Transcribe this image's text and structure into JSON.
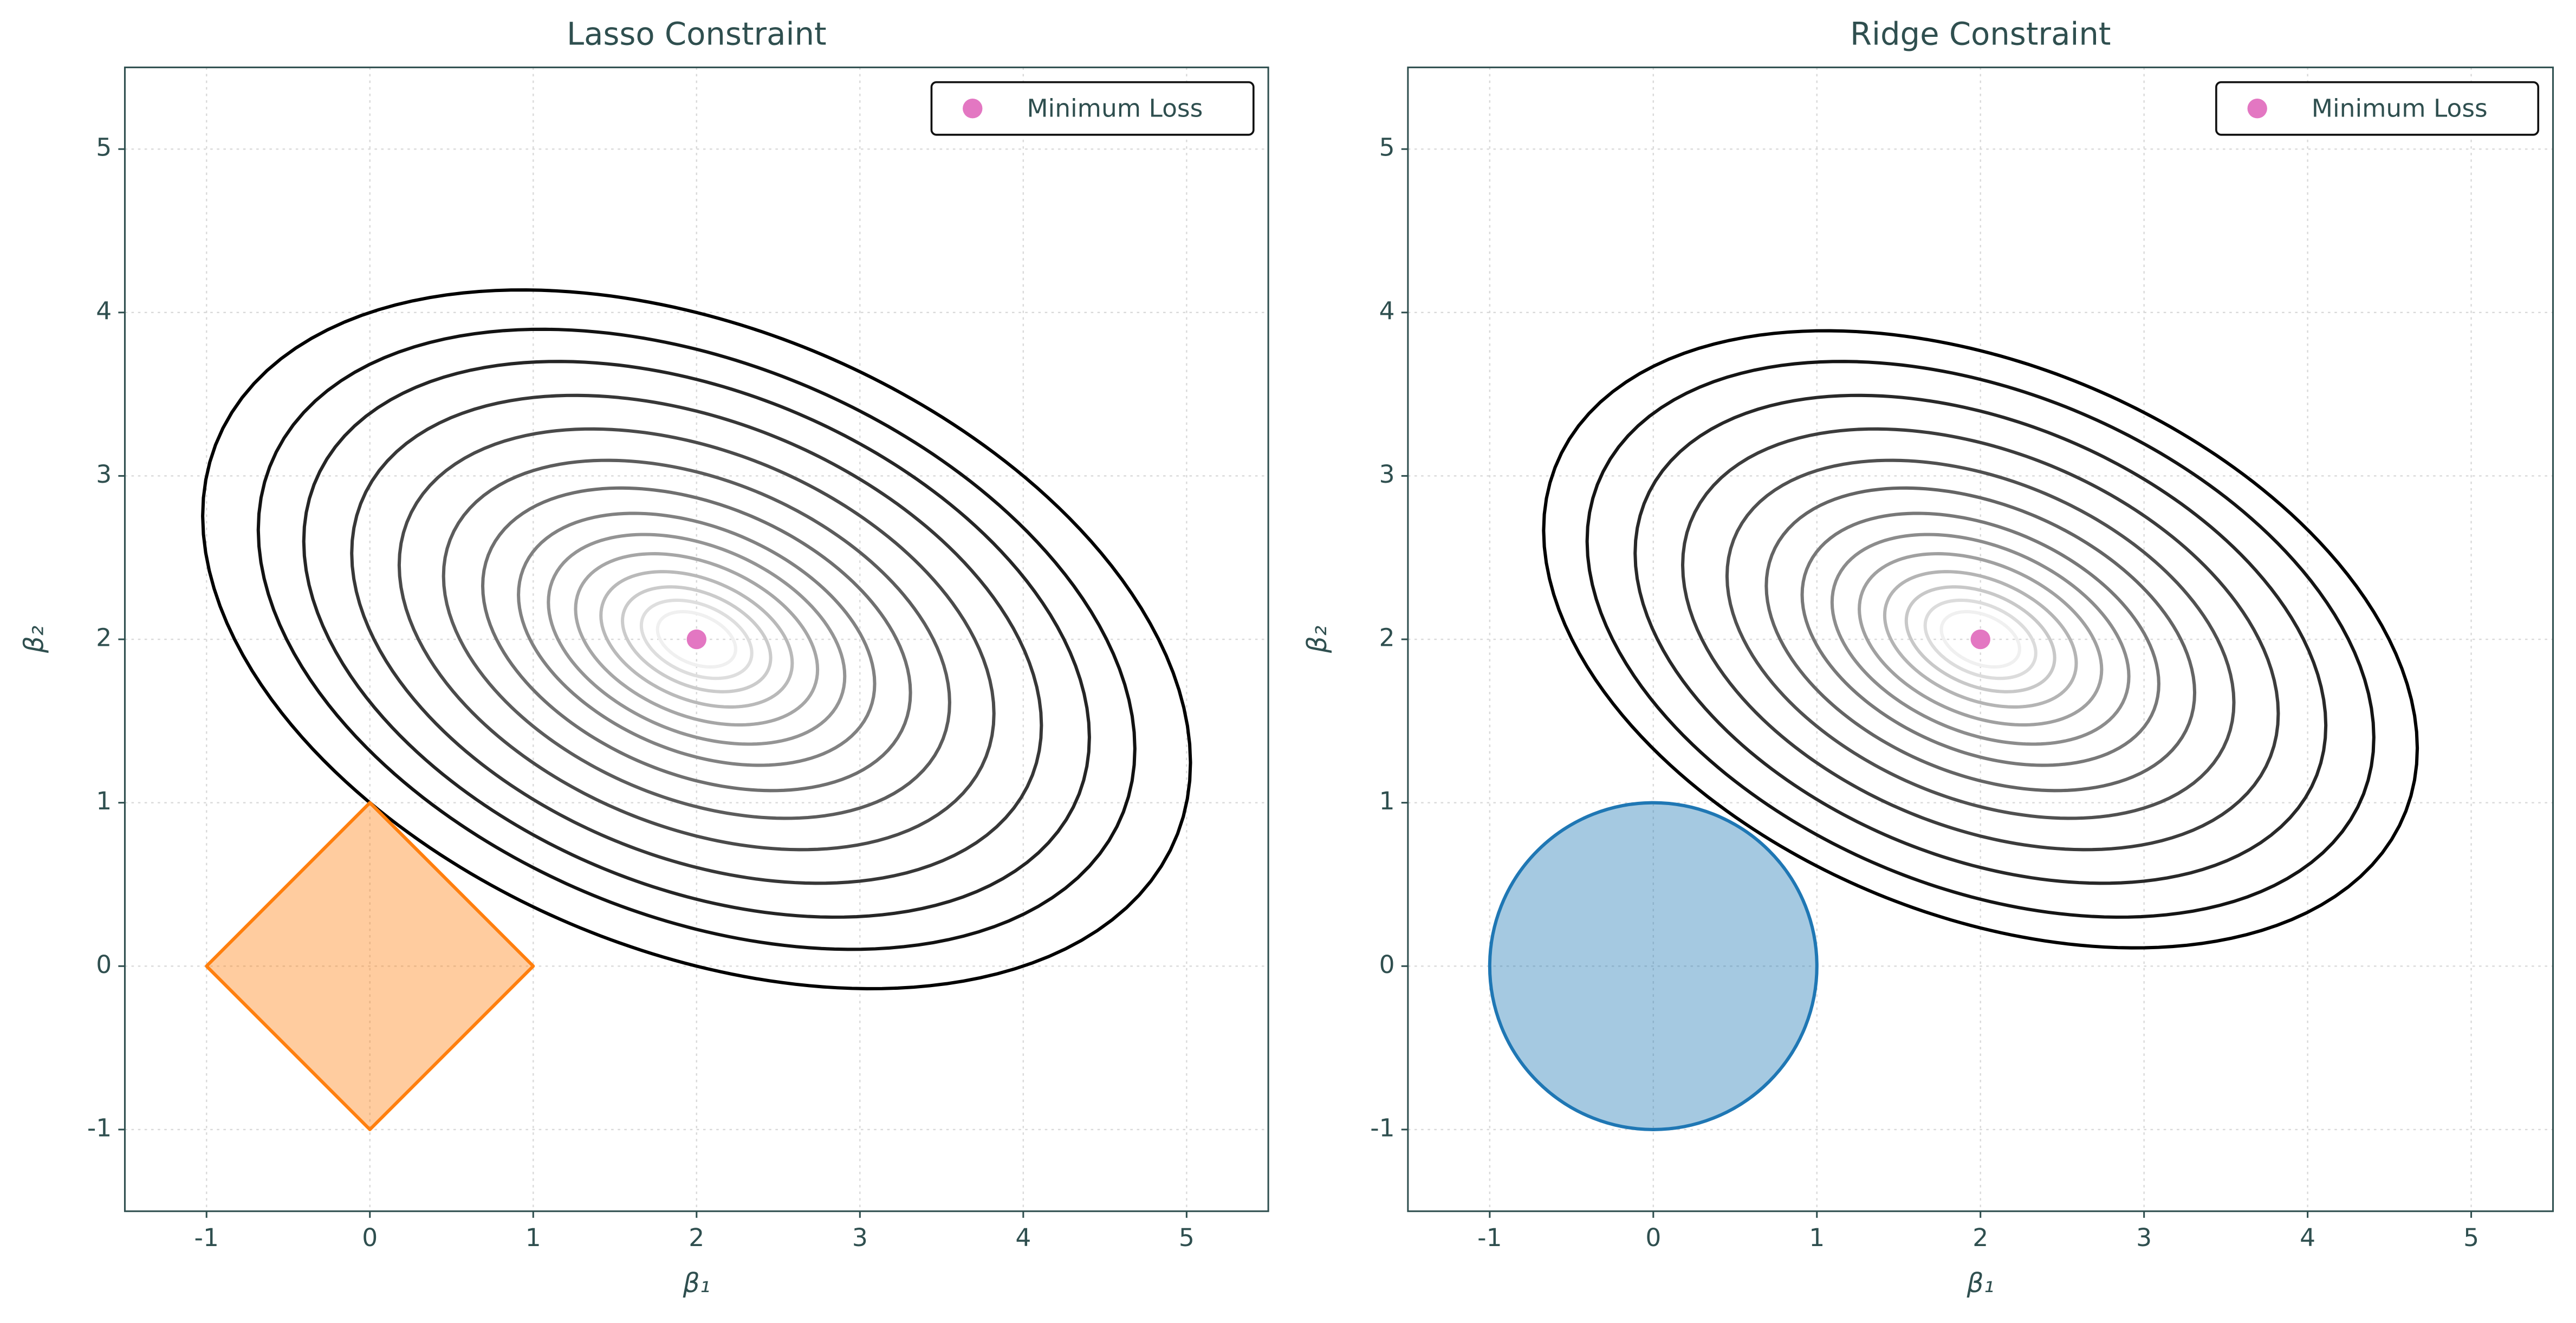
{
  "chart_data": [
    {
      "type": "contour",
      "title": "Lasso Constraint",
      "xlabel": "β₁",
      "ylabel": "β₂",
      "xlim": [
        -1.5,
        5.5
      ],
      "ylim": [
        -1.5,
        5.5
      ],
      "xticks": [
        -1,
        0,
        1,
        2,
        3,
        4,
        5
      ],
      "yticks": [
        -1,
        0,
        1,
        2,
        3,
        4,
        5
      ],
      "grid": true,
      "minimum": {
        "name": "Minimum Loss",
        "x": 2,
        "y": 2,
        "color": "#e377c2"
      },
      "legend": "upper right",
      "contours": {
        "quadratic": [
          0.5,
          0.25,
          1
        ],
        "levels": [
          4,
          3.15,
          2.53,
          1.95,
          1.45,
          1.05,
          0.75,
          0.52,
          0.36,
          0.24,
          0.15,
          0.09,
          0.05,
          0.025
        ]
      },
      "constraint": {
        "shape": "diamond",
        "radius": 1,
        "color": "#ff7f0e"
      }
    },
    {
      "type": "contour",
      "title": "Ridge Constraint",
      "xlabel": "β₁",
      "ylabel": "β₂",
      "xlim": [
        -1.5,
        5.5
      ],
      "ylim": [
        -1.5,
        5.5
      ],
      "xticks": [
        -1,
        0,
        1,
        2,
        3,
        4,
        5
      ],
      "yticks": [
        -1,
        0,
        1,
        2,
        3,
        4,
        5
      ],
      "grid": true,
      "minimum": {
        "name": "Minimum Loss",
        "x": 2,
        "y": 2,
        "color": "#e377c2"
      },
      "legend": "upper right",
      "contours": {
        "quadratic": [
          0.5,
          0.25,
          1
        ],
        "levels": [
          3.12,
          2.53,
          1.95,
          1.45,
          1.05,
          0.75,
          0.52,
          0.36,
          0.24,
          0.15,
          0.09,
          0.05,
          0.025
        ]
      },
      "constraint": {
        "shape": "circle",
        "radius": 1,
        "color": "#1f77b4"
      }
    }
  ]
}
